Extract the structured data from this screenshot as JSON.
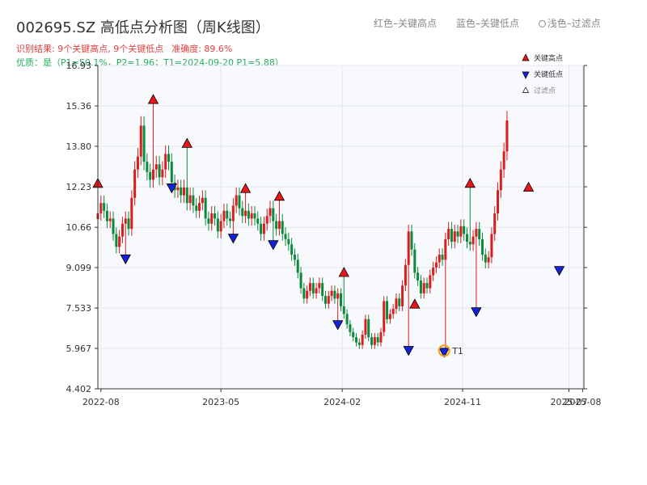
{
  "header": {
    "title": "002695.SZ 高低点分析图（周K线图）",
    "legend_red": "红色–关键高点",
    "legend_blue": "蓝色–关键低点",
    "legend_filtered": "浅色–过滤点",
    "result": "识别结果: 9个关键高点, 9个关键低点",
    "accuracy": "准确度: 89.6%",
    "quality": "优质：是（P1=50.1%，P2=1.96；T1=2024-09-20 P1=5.88）"
  },
  "colors": {
    "up": "#d81e1e",
    "down": "#0c8a3c",
    "high_marker": "#e8161b",
    "low_marker": "#1522d8",
    "t1_circle": "#f39c12",
    "grid": "#e4e8ee",
    "plot_bg": "#f7f9fc"
  },
  "chart_data": {
    "type": "candlestick",
    "title": "002695.SZ 高低点分析图（周K线图）",
    "interval": "weekly",
    "x_range": [
      "2022-07-25",
      "2025-08-04"
    ],
    "y_range": [
      4.402,
      16.93
    ],
    "x_tick_labels": [
      "2022-08",
      "2023-05",
      "2024-02",
      "2024-11",
      "2025-07",
      "2025-08"
    ],
    "y_tick_labels": [
      "16.93",
      "15.36",
      "13.80",
      "12.23",
      "10.66",
      "9.099",
      "7.533",
      "5.967",
      "4.402"
    ],
    "legend": [
      "关键高点",
      "关键低点",
      "过滤点"
    ],
    "legend_position": "top-right",
    "grid": true,
    "series": [
      {
        "name": "关键高点",
        "points": [
          {
            "date": "2022-07-25",
            "value": 12.3
          },
          {
            "date": "2022-11-28",
            "value": 15.55
          },
          {
            "date": "2023-02-13",
            "value": 13.85
          },
          {
            "date": "2023-06-26",
            "value": 12.1
          },
          {
            "date": "2023-09-11",
            "value": 11.8
          },
          {
            "date": "2024-02-05",
            "value": 8.85
          },
          {
            "date": "2024-07-15",
            "value": 7.62
          },
          {
            "date": "2024-11-18",
            "value": 12.3
          },
          {
            "date": "2025-03-31",
            "value": 12.15
          }
        ]
      },
      {
        "name": "关键低点",
        "points": [
          {
            "date": "2022-09-26",
            "value": 9.5
          },
          {
            "date": "2023-01-09",
            "value": 12.25
          },
          {
            "date": "2023-05-29",
            "value": 10.3
          },
          {
            "date": "2023-08-28",
            "value": 10.05
          },
          {
            "date": "2024-01-22",
            "value": 6.95
          },
          {
            "date": "2024-07-01",
            "value": 5.95
          },
          {
            "date": "2024-09-20",
            "value": 5.88
          },
          {
            "date": "2024-12-02",
            "value": 7.45
          },
          {
            "date": "2025-06-09",
            "value": 9.05
          }
        ]
      }
    ],
    "annotations": [
      {
        "label": "T1",
        "date": "2024-09-20",
        "value": 5.88
      }
    ],
    "weekly_closes": [
      11.2,
      11.6,
      11.3,
      10.9,
      11.0,
      10.4,
      9.9,
      10.3,
      10.8,
      11.0,
      10.6,
      11.8,
      12.9,
      13.4,
      14.6,
      13.2,
      12.8,
      12.5,
      12.9,
      13.1,
      12.6,
      12.9,
      13.5,
      13.2,
      12.4,
      12.1,
      12.2,
      11.9,
      12.2,
      11.6,
      11.9,
      11.5,
      11.3,
      11.6,
      11.8,
      11.0,
      10.8,
      11.2,
      11.0,
      10.5,
      10.9,
      11.3,
      11.0,
      10.9,
      11.5,
      11.9,
      11.4,
      11.1,
      11.3,
      11.0,
      11.2,
      11.0,
      10.8,
      10.4,
      10.8,
      11.1,
      11.4,
      10.9,
      10.6,
      10.9,
      10.4,
      10.2,
      10.0,
      9.6,
      9.4,
      8.9,
      8.3,
      7.9,
      8.2,
      8.5,
      8.1,
      8.3,
      8.5,
      8.0,
      7.7,
      8.0,
      8.2,
      7.9,
      8.1,
      7.6,
      7.3,
      6.9,
      6.6,
      6.4,
      6.2,
      6.1,
      6.5,
      7.1,
      6.4,
      6.1,
      6.4,
      6.2,
      6.6,
      7.8,
      7.1,
      7.3,
      7.5,
      7.9,
      7.6,
      8.4,
      9.2,
      10.5,
      9.8,
      8.9,
      8.6,
      8.1,
      8.5,
      8.3,
      8.8,
      9.1,
      9.3,
      9.6,
      9.4,
      10.2,
      10.6,
      10.1,
      10.5,
      10.3,
      10.7,
      10.4,
      10.1,
      10.0,
      10.3,
      10.6,
      10.2,
      9.6,
      9.3,
      9.5,
      10.4,
      11.2,
      12.1,
      12.9,
      13.6,
      14.8
    ]
  }
}
